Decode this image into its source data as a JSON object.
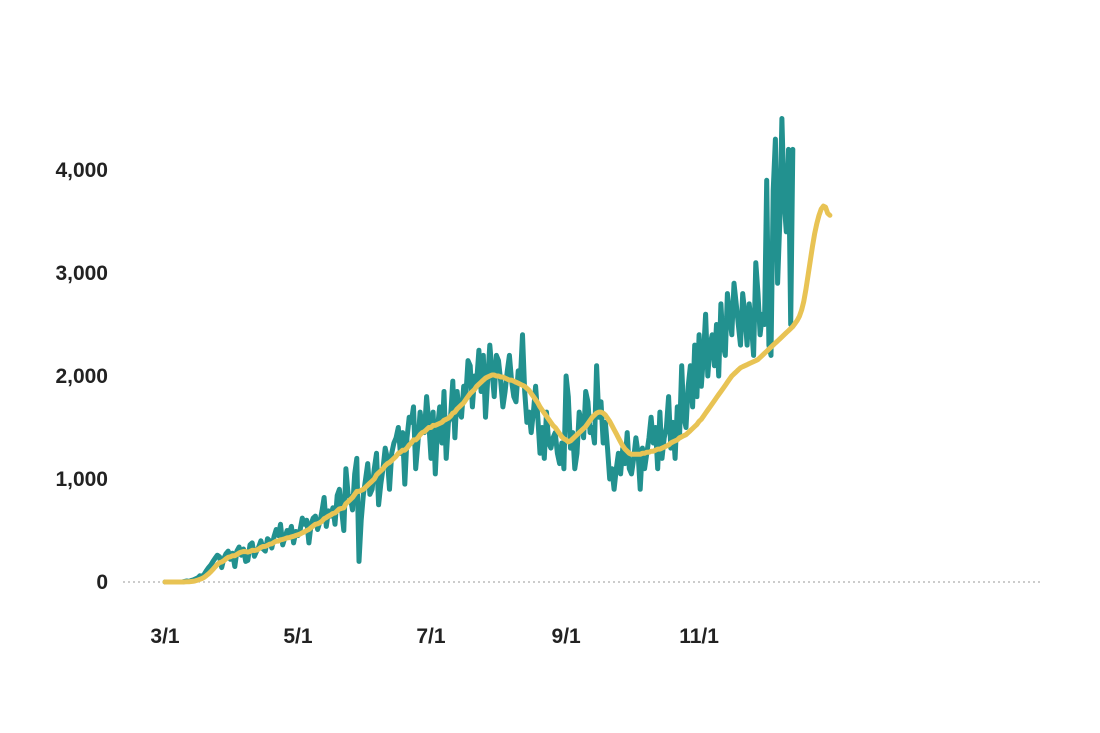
{
  "chart_data": {
    "type": "line",
    "x_type": "date",
    "x_start": "2020-03-01",
    "ylim": [
      0,
      4700
    ],
    "y_ticks": [
      0,
      1000,
      2000,
      3000,
      4000
    ],
    "y_tick_labels": [
      "0",
      "1,000",
      "2,000",
      "3,000",
      "4,000"
    ],
    "x_ticks": [
      "2020-03-01",
      "2020-05-01",
      "2020-07-01",
      "2020-09-01",
      "2020-11-01"
    ],
    "x_tick_labels": [
      "3/1",
      "5/1",
      "7/1",
      "9/1",
      "11/1"
    ],
    "grid": false,
    "zero_line": "dotted",
    "colors": {
      "daily": "#22918F",
      "average": "#E8C354",
      "zero_line": "#999999"
    },
    "series": [
      {
        "values": [
          0,
          0,
          0,
          0,
          0,
          0,
          0,
          0,
          0,
          5,
          10,
          5,
          15,
          20,
          30,
          40,
          60,
          55,
          75,
          110,
          140,
          165,
          200,
          230,
          260,
          245,
          140,
          230,
          275,
          300,
          220,
          280,
          150,
          300,
          340,
          260,
          320,
          200,
          210,
          360,
          380,
          250,
          300,
          340,
          400,
          320,
          300,
          420,
          400,
          330,
          440,
          510,
          450,
          560,
          360,
          430,
          500,
          470,
          540,
          380,
          490,
          450,
          510,
          620,
          560,
          600,
          380,
          560,
          620,
          640,
          510,
          580,
          690,
          820,
          540,
          690,
          640,
          720,
          560,
          840,
          900,
          700,
          500,
          1100,
          850,
          820,
          700,
          1050,
          1200,
          200,
          600,
          850,
          1000,
          1150,
          850,
          900,
          1100,
          1250,
          750,
          950,
          1100,
          1300,
          1200,
          900,
          1250,
          1350,
          1400,
          1500,
          1250,
          1450,
          950,
          1400,
          1600,
          1550,
          1700,
          1100,
          1350,
          1650,
          1500,
          1450,
          1800,
          1550,
          1200,
          1650,
          1050,
          1500,
          1700,
          1350,
          1850,
          1200,
          1550,
          1600,
          1950,
          1400,
          1850,
          1650,
          1600,
          1900,
          1800,
          2150,
          2100,
          1700,
          2000,
          1950,
          2250,
          1850,
          2200,
          1600,
          1950,
          2300,
          2050,
          1800,
          2200,
          2150,
          1950,
          1700,
          1850,
          2050,
          2200,
          1950,
          1800,
          1750,
          2050,
          1950,
          2400,
          1850,
          1550,
          1650,
          1450,
          1650,
          1900,
          1600,
          1250,
          1500,
          1200,
          1650,
          1350,
          1300,
          1400,
          1450,
          1250,
          1150,
          1350,
          1100,
          2000,
          1800,
          1300,
          1450,
          1100,
          1250,
          1650,
          1550,
          1400,
          1850,
          1750,
          1450,
          1500,
          1350,
          2100,
          1600,
          1750,
          1350,
          1550,
          1300,
          1000,
          1100,
          900,
          1100,
          1250,
          1050,
          1300,
          1150,
          1450,
          1100,
          1050,
          1200,
          1400,
          1250,
          900,
          1300,
          1100,
          1250,
          1400,
          1600,
          1350,
          1500,
          1100,
          1650,
          1200,
          1400,
          1500,
          1800,
          1300,
          1550,
          1200,
          1700,
          1400,
          2100,
          1600,
          1500,
          1900,
          2100,
          1700,
          2300,
          1800,
          2400,
          1900,
          2200,
          2600,
          2000,
          2300,
          2400,
          2100,
          2500,
          2000,
          2700,
          2300,
          2200,
          2800,
          2600,
          2400,
          2900,
          2700,
          2500,
          2300,
          2800,
          2600,
          2300,
          2700,
          2500,
          2200,
          3100,
          2800,
          2400,
          2600,
          2500,
          3900,
          2300,
          2200,
          3800,
          4300,
          2900,
          3500,
          4500,
          3700,
          3400,
          4200,
          2500,
          4200
        ]
      },
      {
        "values": [
          0,
          0,
          0,
          0,
          0,
          0,
          0,
          0,
          0,
          1,
          2,
          3,
          5,
          7,
          12,
          18,
          26,
          34,
          46,
          62,
          80,
          100,
          123,
          147,
          170,
          188,
          194,
          208,
          225,
          240,
          245,
          255,
          255,
          268,
          282,
          290,
          296,
          295,
          290,
          296,
          308,
          306,
          310,
          320,
          336,
          345,
          346,
          356,
          367,
          371,
          384,
          397,
          397,
          410,
          414,
          420,
          428,
          431,
          438,
          444,
          451,
          458,
          466,
          478,
          487,
          500,
          510,
          528,
          545,
          560,
          565,
          575,
          590,
          615,
          625,
          640,
          650,
          665,
          670,
          690,
          710,
          715,
          720,
          760,
          780,
          800,
          820,
          850,
          880,
          880,
          890,
          900,
          920,
          940,
          960,
          980,
          1000,
          1040,
          1060,
          1080,
          1100,
          1130,
          1150,
          1160,
          1180,
          1200,
          1220,
          1250,
          1260,
          1280,
          1280,
          1300,
          1330,
          1350,
          1380,
          1380,
          1400,
          1430,
          1450,
          1460,
          1480,
          1500,
          1500,
          1520,
          1520,
          1530,
          1540,
          1550,
          1570,
          1580,
          1590,
          1610,
          1640,
          1650,
          1680,
          1700,
          1720,
          1740,
          1770,
          1800,
          1830,
          1850,
          1870,
          1900,
          1920,
          1940,
          1960,
          1980,
          1990,
          2000,
          2010,
          2010,
          2000,
          2000,
          1990,
          1990,
          1980,
          1970,
          1960,
          1960,
          1950,
          1940,
          1930,
          1920,
          1910,
          1900,
          1880,
          1860,
          1830,
          1800,
          1770,
          1740,
          1700,
          1670,
          1640,
          1610,
          1580,
          1550,
          1520,
          1500,
          1470,
          1440,
          1410,
          1390,
          1380,
          1360,
          1370,
          1390,
          1410,
          1430,
          1450,
          1470,
          1490,
          1510,
          1540,
          1570,
          1600,
          1620,
          1640,
          1650,
          1650,
          1640,
          1620,
          1590,
          1560,
          1520,
          1480,
          1440,
          1400,
          1360,
          1320,
          1290,
          1270,
          1250,
          1240,
          1240,
          1240,
          1240,
          1240,
          1250,
          1250,
          1260,
          1260,
          1270,
          1270,
          1280,
          1290,
          1290,
          1300,
          1310,
          1320,
          1330,
          1350,
          1360,
          1370,
          1380,
          1400,
          1410,
          1420,
          1430,
          1450,
          1470,
          1490,
          1510,
          1530,
          1560,
          1580,
          1610,
          1640,
          1670,
          1700,
          1730,
          1760,
          1790,
          1820,
          1850,
          1880,
          1910,
          1940,
          1970,
          2000,
          2020,
          2040,
          2060,
          2080,
          2090,
          2100,
          2110,
          2120,
          2130,
          2140,
          2150,
          2160,
          2180,
          2200,
          2220,
          2240,
          2260,
          2280,
          2300,
          2320,
          2340,
          2360,
          2380,
          2400,
          2420,
          2440,
          2460,
          2480,
          2510,
          2540,
          2580,
          2640,
          2720,
          2840,
          2980,
          3120,
          3260,
          3380,
          3480,
          3560,
          3620,
          3650,
          3640,
          3580,
          3560
        ]
      }
    ]
  }
}
